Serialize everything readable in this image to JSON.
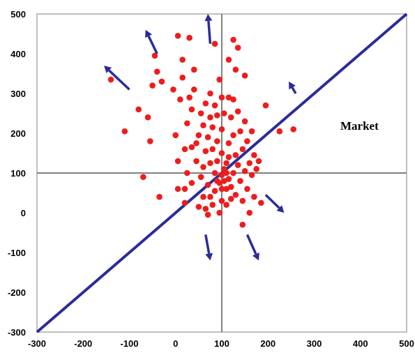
{
  "chart_data": {
    "type": "scatter",
    "title": "",
    "xlabel": "",
    "ylabel": "",
    "xlim": [
      -300,
      500
    ],
    "ylim": [
      -300,
      500
    ],
    "xticks": [
      "-300",
      "-200",
      "-100",
      "0",
      "100",
      "200",
      "300",
      "400",
      "500"
    ],
    "yticks": [
      "500",
      "400",
      "300",
      "200",
      "100",
      "0",
      "-100",
      "-200",
      "-300"
    ],
    "reference_lines": {
      "x": 100,
      "y": 100
    },
    "market_line": {
      "from": [
        -300,
        -300
      ],
      "to": [
        500,
        500
      ],
      "label": "Market"
    },
    "points": [
      [
        -140,
        335
      ],
      [
        -110,
        205
      ],
      [
        -80,
        260
      ],
      [
        -70,
        90
      ],
      [
        -60,
        240
      ],
      [
        -55,
        180
      ],
      [
        -50,
        320
      ],
      [
        -45,
        395
      ],
      [
        -40,
        355
      ],
      [
        -35,
        40
      ],
      [
        -30,
        330
      ],
      [
        -5,
        310
      ],
      [
        0,
        195
      ],
      [
        5,
        130
      ],
      [
        5,
        60
      ],
      [
        5,
        445
      ],
      [
        10,
        285
      ],
      [
        15,
        385
      ],
      [
        15,
        340
      ],
      [
        20,
        160
      ],
      [
        20,
        60
      ],
      [
        20,
        25
      ],
      [
        25,
        225
      ],
      [
        25,
        100
      ],
      [
        30,
        440
      ],
      [
        30,
        290
      ],
      [
        35,
        260
      ],
      [
        35,
        165
      ],
      [
        35,
        75
      ],
      [
        40,
        310
      ],
      [
        40,
        360
      ],
      [
        45,
        175
      ],
      [
        45,
        130
      ],
      [
        50,
        15
      ],
      [
        50,
        195
      ],
      [
        55,
        90
      ],
      [
        55,
        250
      ],
      [
        60,
        220
      ],
      [
        60,
        115
      ],
      [
        60,
        40
      ],
      [
        65,
        275
      ],
      [
        65,
        155
      ],
      [
        65,
        10
      ],
      [
        70,
        190
      ],
      [
        70,
        70
      ],
      [
        70,
        -5
      ],
      [
        75,
        300
      ],
      [
        75,
        240
      ],
      [
        75,
        125
      ],
      [
        75,
        40
      ],
      [
        80,
        215
      ],
      [
        80,
        160
      ],
      [
        80,
        20
      ],
      [
        85,
        425
      ],
      [
        85,
        270
      ],
      [
        85,
        100
      ],
      [
        85,
        55
      ],
      [
        90,
        245
      ],
      [
        90,
        180
      ],
      [
        90,
        130
      ],
      [
        90,
        80
      ],
      [
        95,
        335
      ],
      [
        95,
        75
      ],
      [
        95,
        0
      ],
      [
        100,
        290
      ],
      [
        100,
        210
      ],
      [
        100,
        150
      ],
      [
        100,
        95
      ],
      [
        100,
        60
      ],
      [
        100,
        30
      ],
      [
        105,
        250
      ],
      [
        105,
        110
      ],
      [
        105,
        80
      ],
      [
        110,
        125
      ],
      [
        110,
        100
      ],
      [
        110,
        60
      ],
      [
        110,
        20
      ],
      [
        115,
        385
      ],
      [
        115,
        290
      ],
      [
        115,
        175
      ],
      [
        115,
        140
      ],
      [
        115,
        85
      ],
      [
        120,
        240
      ],
      [
        120,
        65
      ],
      [
        120,
        35
      ],
      [
        125,
        435
      ],
      [
        125,
        285
      ],
      [
        125,
        195
      ],
      [
        125,
        100
      ],
      [
        130,
        360
      ],
      [
        130,
        145
      ],
      [
        130,
        45
      ],
      [
        135,
        255
      ],
      [
        135,
        415
      ],
      [
        135,
        120
      ],
      [
        140,
        205
      ],
      [
        140,
        80
      ],
      [
        145,
        160
      ],
      [
        145,
        30
      ],
      [
        150,
        345
      ],
      [
        150,
        230
      ],
      [
        150,
        105
      ],
      [
        155,
        180
      ],
      [
        155,
        60
      ],
      [
        160,
        125
      ],
      [
        160,
        0
      ],
      [
        165,
        205
      ],
      [
        165,
        95
      ],
      [
        170,
        145
      ],
      [
        170,
        40
      ],
      [
        175,
        110
      ],
      [
        180,
        130
      ],
      [
        185,
        25
      ],
      [
        195,
        270
      ],
      [
        225,
        205
      ],
      [
        255,
        210
      ],
      [
        145,
        -30
      ]
    ],
    "arrows": [
      {
        "from": [
          -100,
          310
        ],
        "to": [
          -155,
          370
        ]
      },
      {
        "from": [
          -40,
          400
        ],
        "to": [
          -65,
          460
        ]
      },
      {
        "from": [
          75,
          425
        ],
        "to": [
          70,
          500
        ]
      },
      {
        "from": [
          260,
          300
        ],
        "to": [
          245,
          330
        ]
      },
      {
        "from": [
          195,
          45
        ],
        "to": [
          235,
          0
        ]
      },
      {
        "from": [
          155,
          -55
        ],
        "to": [
          180,
          -120
        ]
      },
      {
        "from": [
          65,
          -55
        ],
        "to": [
          75,
          -120
        ]
      }
    ],
    "colors": {
      "points": "#ee1c1c",
      "market_line": "#2b2b9a",
      "arrows": "#2b2b9a",
      "ref_lines": "#808080"
    }
  }
}
